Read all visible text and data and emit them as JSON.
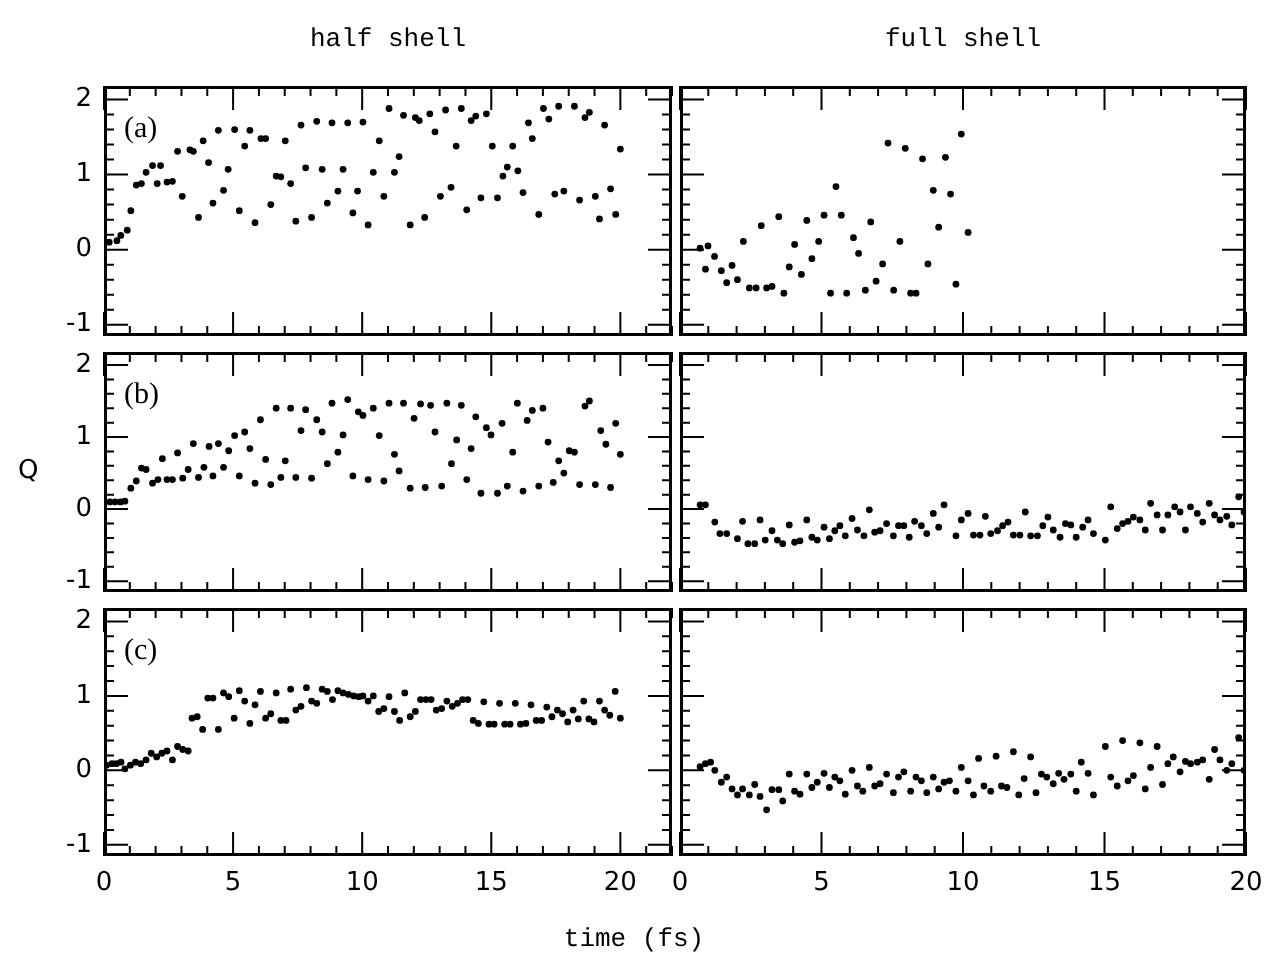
{
  "chart_data": [
    {
      "type": "scatter",
      "title": "half shell",
      "annotations": [
        "(a)"
      ],
      "marker": "circle",
      "color": "#000000",
      "tick_labels": "y",
      "xlim": [
        0,
        22
      ],
      "ylim": [
        -1.15,
        2.18
      ],
      "xticks": [
        0,
        {
          "value": 1,
          "label": null
        },
        {
          "value": 2,
          "label": null
        },
        {
          "value": 3,
          "label": null
        },
        {
          "value": 4,
          "label": null
        },
        5,
        {
          "value": 6,
          "label": null
        },
        {
          "value": 7,
          "label": null
        },
        {
          "value": 8,
          "label": null
        },
        {
          "value": 9,
          "label": null
        },
        10,
        {
          "value": 11,
          "label": null
        },
        {
          "value": 12,
          "label": null
        },
        {
          "value": 13,
          "label": null
        },
        {
          "value": 14,
          "label": null
        },
        15,
        {
          "value": 16,
          "label": null
        },
        {
          "value": 17,
          "label": null
        },
        {
          "value": 18,
          "label": null
        },
        {
          "value": 19,
          "label": null
        },
        20,
        {
          "value": 21,
          "label": null
        },
        {
          "value": 22,
          "label": null
        }
      ],
      "yticks": [
        -1,
        {
          "value": -0.8,
          "label": null
        },
        {
          "value": -0.6,
          "label": null
        },
        {
          "value": -0.4,
          "label": null
        },
        {
          "value": -0.2,
          "label": null
        },
        0,
        {
          "value": 0.2,
          "label": null
        },
        {
          "value": 0.4,
          "label": null
        },
        {
          "value": 0.6,
          "label": null
        },
        {
          "value": 0.8,
          "label": null
        },
        1,
        {
          "value": 1.2,
          "label": null
        },
        {
          "value": 1.4,
          "label": null
        },
        {
          "value": 1.6,
          "label": null
        },
        {
          "value": 1.8,
          "label": null
        },
        2
      ],
      "x": [
        0.2,
        0.5,
        0.65,
        0.9,
        1.04,
        1.25,
        1.45,
        1.63,
        1.88,
        2.19,
        2.06,
        2.44,
        2.65,
        2.85,
        3.03,
        3.33,
        3.46,
        3.66,
        3.84,
        4.05,
        4.22,
        4.43,
        4.63,
        4.81,
        5.06,
        5.24,
        5.45,
        5.65,
        5.85,
        6.08,
        6.26,
        6.46,
        6.67,
        6.85,
        7.02,
        7.23,
        7.43,
        7.63,
        7.81,
        8.04,
        8.24,
        8.45,
        8.65,
        8.83,
        9.06,
        9.26,
        9.44,
        9.64,
        9.82,
        10.03,
        10.23,
        10.43,
        10.66,
        10.84,
        11.04,
        11.25,
        11.43,
        11.6,
        11.86,
        12.06,
        12.21,
        12.42,
        12.62,
        12.82,
        13.03,
        13.23,
        13.44,
        13.64,
        13.84,
        14.05,
        14.22,
        14.4,
        14.6,
        14.81,
        15.04,
        15.24,
        15.45,
        15.62,
        15.83,
        16.03,
        16.23,
        16.44,
        16.59,
        16.84,
        17.02,
        17.23,
        17.46,
        17.61,
        17.81,
        18.22,
        18.42,
        18.63,
        18.8,
        19.03,
        19.19,
        19.39,
        19.62,
        19.82,
        20.0
      ],
      "values": [
        0.1,
        0.12,
        0.19,
        0.26,
        0.52,
        0.86,
        0.88,
        1.03,
        1.12,
        1.12,
        0.88,
        0.9,
        0.91,
        1.31,
        0.71,
        1.33,
        1.31,
        0.43,
        1.45,
        1.16,
        0.62,
        1.59,
        0.79,
        1.07,
        1.6,
        0.52,
        1.38,
        1.59,
        0.36,
        1.48,
        1.48,
        0.6,
        0.98,
        0.97,
        1.45,
        0.88,
        0.38,
        1.66,
        1.09,
        0.43,
        1.71,
        1.07,
        0.62,
        1.69,
        0.78,
        1.07,
        1.69,
        0.49,
        0.78,
        1.7,
        0.33,
        1.03,
        1.45,
        0.71,
        1.88,
        1.03,
        1.24,
        1.79,
        0.33,
        1.76,
        1.72,
        0.43,
        1.81,
        1.57,
        0.71,
        1.86,
        0.83,
        1.38,
        1.88,
        0.53,
        1.72,
        1.78,
        0.69,
        1.81,
        1.38,
        0.69,
        0.98,
        1.1,
        1.38,
        1.05,
        0.76,
        1.69,
        1.48,
        0.47,
        1.88,
        1.74,
        0.74,
        1.91,
        0.78,
        1.91,
        0.66,
        1.76,
        1.83,
        0.71,
        0.41,
        1.66,
        0.81,
        0.47,
        1.34
      ]
    },
    {
      "type": "scatter",
      "title": "full shell",
      "marker": "circle",
      "color": "#000000",
      "tick_labels": false,
      "xlim": [
        0,
        20
      ],
      "ylim": [
        -1.15,
        2.18
      ],
      "xticks": [
        0,
        {
          "value": 1,
          "label": null
        },
        {
          "value": 2,
          "label": null
        },
        {
          "value": 3,
          "label": null
        },
        {
          "value": 4,
          "label": null
        },
        5,
        {
          "value": 6,
          "label": null
        },
        {
          "value": 7,
          "label": null
        },
        {
          "value": 8,
          "label": null
        },
        {
          "value": 9,
          "label": null
        },
        10,
        {
          "value": 11,
          "label": null
        },
        {
          "value": 12,
          "label": null
        },
        {
          "value": 13,
          "label": null
        },
        {
          "value": 14,
          "label": null
        },
        15,
        {
          "value": 16,
          "label": null
        },
        {
          "value": 17,
          "label": null
        },
        {
          "value": 18,
          "label": null
        },
        {
          "value": 19,
          "label": null
        },
        20
      ],
      "yticks": [
        -1,
        {
          "value": -0.8,
          "label": null
        },
        {
          "value": -0.6,
          "label": null
        },
        {
          "value": -0.4,
          "label": null
        },
        {
          "value": -0.2,
          "label": null
        },
        0,
        {
          "value": 0.2,
          "label": null
        },
        {
          "value": 0.4,
          "label": null
        },
        {
          "value": 0.6,
          "label": null
        },
        {
          "value": 0.8,
          "label": null
        },
        1,
        {
          "value": 1.2,
          "label": null
        },
        {
          "value": 1.4,
          "label": null
        },
        {
          "value": 1.6,
          "label": null
        },
        {
          "value": 1.8,
          "label": null
        },
        2
      ],
      "x": [
        0.71,
        0.99,
        1.22,
        0.9,
        1.46,
        1.65,
        1.84,
        2.03,
        2.24,
        2.45,
        2.69,
        2.87,
        3.06,
        3.25,
        3.49,
        3.67,
        3.86,
        4.05,
        4.29,
        4.48,
        4.66,
        4.9,
        5.09,
        5.32,
        5.51,
        5.7,
        5.89,
        6.13,
        6.31,
        6.55,
        6.74,
        6.93,
        7.16,
        7.35,
        7.55,
        7.77,
        7.96,
        8.15,
        8.34,
        8.57,
        8.76,
        8.95,
        9.14,
        9.38,
        9.56,
        9.75,
        9.94,
        10.18
      ],
      "values": [
        0.02,
        0.05,
        -0.09,
        -0.26,
        -0.28,
        -0.44,
        -0.21,
        -0.4,
        0.11,
        -0.51,
        -0.51,
        0.32,
        -0.51,
        -0.49,
        0.44,
        -0.58,
        -0.23,
        0.07,
        -0.33,
        0.39,
        -0.12,
        0.11,
        0.46,
        -0.58,
        0.84,
        0.46,
        -0.58,
        0.16,
        -0.05,
        -0.54,
        0.37,
        -0.42,
        -0.19,
        1.42,
        -0.54,
        0.11,
        1.35,
        -0.58,
        -0.58,
        1.21,
        -0.19,
        0.79,
        0.3,
        1.23,
        0.74,
        -0.46,
        1.54,
        0.23
      ]
    },
    {
      "type": "scatter",
      "ylabel": "Q",
      "annotations": [
        "(b)"
      ],
      "marker": "circle",
      "color": "#000000",
      "tick_labels": "y",
      "xlim": [
        0,
        22
      ],
      "ylim": [
        -1.15,
        2.18
      ],
      "xticks": [
        0,
        {
          "value": 1,
          "label": null
        },
        {
          "value": 2,
          "label": null
        },
        {
          "value": 3,
          "label": null
        },
        {
          "value": 4,
          "label": null
        },
        5,
        {
          "value": 6,
          "label": null
        },
        {
          "value": 7,
          "label": null
        },
        {
          "value": 8,
          "label": null
        },
        {
          "value": 9,
          "label": null
        },
        10,
        {
          "value": 11,
          "label": null
        },
        {
          "value": 12,
          "label": null
        },
        {
          "value": 13,
          "label": null
        },
        {
          "value": 14,
          "label": null
        },
        15,
        {
          "value": 16,
          "label": null
        },
        {
          "value": 17,
          "label": null
        },
        {
          "value": 18,
          "label": null
        },
        {
          "value": 19,
          "label": null
        },
        20,
        {
          "value": 21,
          "label": null
        },
        {
          "value": 22,
          "label": null
        }
      ],
      "yticks": [
        -1,
        {
          "value": -0.8,
          "label": null
        },
        {
          "value": -0.6,
          "label": null
        },
        {
          "value": -0.4,
          "label": null
        },
        {
          "value": -0.2,
          "label": null
        },
        0,
        {
          "value": 0.2,
          "label": null
        },
        {
          "value": 0.4,
          "label": null
        },
        {
          "value": 0.6,
          "label": null
        },
        {
          "value": 0.8,
          "label": null
        },
        1,
        {
          "value": 1.2,
          "label": null
        },
        {
          "value": 1.4,
          "label": null
        },
        {
          "value": 1.6,
          "label": null
        },
        {
          "value": 1.8,
          "label": null
        },
        2
      ],
      "x": [
        0.23,
        0.43,
        0.64,
        0.81,
        1.04,
        1.25,
        1.45,
        1.63,
        1.88,
        2.09,
        2.26,
        2.44,
        2.65,
        2.85,
        3.05,
        3.26,
        3.46,
        3.66,
        3.87,
        4.07,
        4.22,
        4.43,
        4.63,
        4.83,
        5.06,
        5.24,
        5.45,
        5.65,
        5.85,
        6.06,
        6.26,
        6.46,
        6.67,
        6.85,
        7.02,
        7.23,
        7.43,
        7.63,
        7.81,
        8.04,
        8.24,
        8.45,
        8.65,
        8.83,
        9.06,
        9.26,
        9.44,
        9.64,
        9.85,
        10.03,
        10.23,
        10.43,
        10.66,
        10.84,
        11.04,
        11.25,
        11.43,
        11.6,
        11.86,
        12.01,
        12.26,
        12.44,
        12.65,
        12.82,
        13.08,
        13.28,
        13.46,
        13.66,
        13.84,
        14.05,
        14.22,
        14.4,
        14.6,
        14.81,
        14.99,
        15.24,
        15.42,
        15.62,
        15.83,
        16.01,
        16.23,
        16.39,
        16.59,
        16.84,
        17.0,
        17.2,
        17.4,
        17.61,
        17.81,
        18.02,
        18.22,
        18.42,
        18.63,
        18.8,
        19.03,
        19.24,
        19.44,
        19.62,
        19.82,
        20.0
      ],
      "values": [
        0.1,
        0.1,
        0.1,
        0.11,
        0.29,
        0.39,
        0.57,
        0.55,
        0.36,
        0.41,
        0.7,
        0.41,
        0.41,
        0.78,
        0.43,
        0.55,
        0.91,
        0.44,
        0.58,
        0.87,
        0.46,
        0.91,
        0.58,
        0.81,
        1.02,
        0.46,
        1.07,
        0.84,
        0.36,
        1.24,
        0.69,
        0.34,
        1.4,
        0.44,
        0.67,
        1.4,
        0.44,
        1.09,
        1.38,
        0.43,
        1.24,
        1.07,
        0.63,
        1.47,
        0.79,
        1.03,
        1.52,
        0.46,
        1.35,
        1.3,
        0.41,
        1.4,
        1.02,
        0.39,
        1.47,
        0.76,
        0.53,
        1.47,
        0.29,
        1.26,
        1.46,
        0.3,
        1.44,
        1.07,
        0.32,
        1.47,
        0.63,
        0.96,
        1.44,
        0.41,
        0.84,
        1.28,
        0.22,
        1.13,
        1.03,
        0.22,
        1.19,
        0.32,
        0.79,
        1.47,
        0.25,
        1.23,
        1.37,
        0.32,
        1.4,
        0.93,
        0.37,
        0.67,
        0.5,
        0.81,
        0.79,
        0.34,
        1.43,
        1.5,
        0.34,
        1.09,
        0.9,
        0.3,
        1.19,
        0.76
      ]
    },
    {
      "type": "scatter",
      "marker": "circle",
      "color": "#000000",
      "tick_labels": false,
      "xlim": [
        0,
        20
      ],
      "ylim": [
        -1.15,
        2.18
      ],
      "xticks": [
        0,
        {
          "value": 1,
          "label": null
        },
        {
          "value": 2,
          "label": null
        },
        {
          "value": 3,
          "label": null
        },
        {
          "value": 4,
          "label": null
        },
        5,
        {
          "value": 6,
          "label": null
        },
        {
          "value": 7,
          "label": null
        },
        {
          "value": 8,
          "label": null
        },
        {
          "value": 9,
          "label": null
        },
        10,
        {
          "value": 11,
          "label": null
        },
        {
          "value": 12,
          "label": null
        },
        {
          "value": 13,
          "label": null
        },
        {
          "value": 14,
          "label": null
        },
        15,
        {
          "value": 16,
          "label": null
        },
        {
          "value": 17,
          "label": null
        },
        {
          "value": 18,
          "label": null
        },
        {
          "value": 19,
          "label": null
        },
        20
      ],
      "yticks": [
        -1,
        {
          "value": -0.8,
          "label": null
        },
        {
          "value": -0.6,
          "label": null
        },
        {
          "value": -0.4,
          "label": null
        },
        {
          "value": -0.2,
          "label": null
        },
        0,
        {
          "value": 0.2,
          "label": null
        },
        {
          "value": 0.4,
          "label": null
        },
        {
          "value": 0.6,
          "label": null
        },
        {
          "value": 0.8,
          "label": null
        },
        1,
        {
          "value": 1.2,
          "label": null
        },
        {
          "value": 1.4,
          "label": null
        },
        {
          "value": 1.6,
          "label": null
        },
        {
          "value": 1.8,
          "label": null
        },
        2
      ],
      "x": [
        0.71,
        0.9,
        1.23,
        1.41,
        1.65,
        2.03,
        2.21,
        2.4,
        2.64,
        2.83,
        3.01,
        3.25,
        3.44,
        3.63,
        3.86,
        4.05,
        4.24,
        4.48,
        4.66,
        4.85,
        5.09,
        5.28,
        5.47,
        5.65,
        5.84,
        6.08,
        6.27,
        6.5,
        6.69,
        6.88,
        7.07,
        7.3,
        7.54,
        7.72,
        7.91,
        8.1,
        8.29,
        8.53,
        8.72,
        8.95,
        9.14,
        9.33,
        9.75,
        9.94,
        10.18,
        10.37,
        10.6,
        10.79,
        10.98,
        11.22,
        11.4,
        11.59,
        11.78,
        12.01,
        12.2,
        12.39,
        12.63,
        12.82,
        13.0,
        13.19,
        13.43,
        13.62,
        13.81,
        14.0,
        14.23,
        14.42,
        14.61,
        15.03,
        15.22,
        15.45,
        15.64,
        15.83,
        16.02,
        16.25,
        16.44,
        16.63,
        16.86,
        17.05,
        17.24,
        17.48,
        17.67,
        17.86,
        18.04,
        18.28,
        18.47,
        18.7,
        18.89,
        19.08,
        19.32,
        19.5,
        19.74,
        19.93
      ],
      "values": [
        0.06,
        0.06,
        -0.18,
        -0.34,
        -0.34,
        -0.41,
        -0.17,
        -0.48,
        -0.48,
        -0.15,
        -0.43,
        -0.3,
        -0.43,
        -0.48,
        -0.22,
        -0.46,
        -0.44,
        -0.15,
        -0.39,
        -0.43,
        -0.25,
        -0.41,
        -0.3,
        -0.23,
        -0.37,
        -0.13,
        -0.29,
        -0.37,
        -0.01,
        -0.32,
        -0.3,
        -0.2,
        -0.37,
        -0.23,
        -0.23,
        -0.39,
        -0.17,
        -0.23,
        -0.34,
        -0.06,
        -0.25,
        0.06,
        -0.37,
        -0.15,
        -0.06,
        -0.36,
        -0.36,
        -0.1,
        -0.34,
        -0.3,
        -0.23,
        -0.18,
        -0.36,
        -0.36,
        -0.04,
        -0.37,
        -0.37,
        -0.23,
        -0.11,
        -0.29,
        -0.39,
        -0.2,
        -0.22,
        -0.39,
        -0.25,
        -0.15,
        -0.34,
        -0.43,
        0.03,
        -0.27,
        -0.2,
        -0.17,
        -0.11,
        -0.15,
        -0.29,
        0.08,
        -0.08,
        -0.29,
        -0.08,
        0.03,
        -0.04,
        -0.29,
        0.03,
        -0.06,
        -0.18,
        0.08,
        -0.08,
        -0.15,
        -0.1,
        -0.22,
        0.17,
        -0.04
      ]
    },
    {
      "type": "scatter",
      "xlabel": "time (fs)",
      "annotations": [
        "(c)"
      ],
      "marker": "circle",
      "color": "#000000",
      "xlim": [
        0,
        22
      ],
      "ylim": [
        -1.15,
        2.18
      ],
      "xticks": [
        0,
        {
          "value": 1,
          "label": null
        },
        {
          "value": 2,
          "label": null
        },
        {
          "value": 3,
          "label": null
        },
        {
          "value": 4,
          "label": null
        },
        5,
        {
          "value": 6,
          "label": null
        },
        {
          "value": 7,
          "label": null
        },
        {
          "value": 8,
          "label": null
        },
        {
          "value": 9,
          "label": null
        },
        10,
        {
          "value": 11,
          "label": null
        },
        {
          "value": 12,
          "label": null
        },
        {
          "value": 13,
          "label": null
        },
        {
          "value": 14,
          "label": null
        },
        15,
        {
          "value": 16,
          "label": null
        },
        {
          "value": 17,
          "label": null
        },
        {
          "value": 18,
          "label": null
        },
        {
          "value": 19,
          "label": null
        },
        20,
        {
          "value": 21,
          "label": null
        },
        {
          "value": 22,
          "label": null
        }
      ],
      "yticks": [
        -1,
        {
          "value": -0.8,
          "label": null
        },
        {
          "value": -0.6,
          "label": null
        },
        {
          "value": -0.4,
          "label": null
        },
        {
          "value": -0.2,
          "label": null
        },
        0,
        {
          "value": 0.2,
          "label": null
        },
        {
          "value": 0.4,
          "label": null
        },
        {
          "value": 0.6,
          "label": null
        },
        {
          "value": 0.8,
          "label": null
        },
        1,
        {
          "value": 1.2,
          "label": null
        },
        {
          "value": 1.4,
          "label": null
        },
        {
          "value": 1.6,
          "label": null
        },
        {
          "value": 1.8,
          "label": null
        },
        2
      ],
      "x": [
        0.1,
        0.31,
        0.48,
        0.66,
        0.81,
        1.02,
        1.22,
        1.42,
        1.63,
        1.83,
        2.04,
        2.24,
        2.44,
        2.65,
        2.85,
        3.05,
        3.26,
        3.41,
        3.61,
        3.82,
        4.02,
        4.22,
        4.43,
        4.63,
        4.83,
        5.04,
        5.24,
        5.45,
        5.65,
        5.85,
        6.06,
        6.26,
        6.46,
        6.67,
        6.85,
        7.05,
        7.23,
        7.43,
        7.63,
        7.84,
        8.04,
        8.24,
        8.45,
        8.65,
        8.85,
        9.06,
        9.26,
        9.47,
        9.67,
        9.87,
        10.03,
        10.23,
        10.43,
        10.64,
        10.84,
        11.04,
        11.25,
        11.45,
        11.65,
        11.86,
        12.06,
        12.26,
        12.47,
        12.67,
        12.87,
        13.08,
        13.28,
        13.49,
        13.69,
        13.89,
        14.09,
        14.3,
        14.5,
        14.71,
        14.91,
        15.11,
        15.32,
        15.52,
        15.73,
        15.93,
        16.13,
        16.34,
        16.54,
        16.74,
        16.95,
        17.15,
        17.35,
        17.56,
        17.76,
        17.96,
        18.17,
        18.37,
        18.58,
        18.78,
        18.98,
        19.19,
        19.39,
        19.59,
        19.8,
        20.0
      ],
      "values": [
        0.07,
        0.09,
        0.09,
        0.11,
        0.02,
        0.07,
        0.11,
        0.09,
        0.14,
        0.23,
        0.18,
        0.23,
        0.26,
        0.14,
        0.32,
        0.28,
        0.26,
        0.7,
        0.72,
        0.55,
        0.97,
        0.97,
        0.55,
        1.04,
        0.99,
        0.7,
        1.07,
        0.93,
        0.63,
        0.88,
        1.06,
        0.7,
        0.76,
        1.04,
        0.67,
        0.67,
        1.09,
        0.81,
        0.86,
        1.11,
        0.93,
        0.9,
        1.09,
        1.06,
        0.95,
        1.07,
        1.04,
        1.02,
        1.0,
        0.99,
        1.0,
        0.93,
        1.0,
        0.79,
        0.83,
        0.99,
        0.79,
        0.67,
        1.04,
        0.72,
        0.79,
        0.95,
        0.95,
        0.95,
        0.81,
        0.83,
        0.93,
        0.86,
        0.9,
        0.95,
        0.95,
        0.67,
        0.63,
        0.92,
        0.62,
        0.62,
        0.9,
        0.62,
        0.62,
        0.9,
        0.62,
        0.63,
        0.88,
        0.67,
        0.67,
        0.85,
        0.72,
        0.81,
        0.76,
        0.65,
        0.81,
        0.69,
        0.93,
        0.69,
        0.65,
        0.93,
        0.81,
        0.74,
        1.06,
        0.7
      ]
    },
    {
      "type": "scatter",
      "marker": "circle",
      "color": "#000000",
      "tick_labels": "x",
      "xlim": [
        0,
        20
      ],
      "ylim": [
        -1.15,
        2.18
      ],
      "xticks": [
        0,
        {
          "value": 1,
          "label": null
        },
        {
          "value": 2,
          "label": null
        },
        {
          "value": 3,
          "label": null
        },
        {
          "value": 4,
          "label": null
        },
        5,
        {
          "value": 6,
          "label": null
        },
        {
          "value": 7,
          "label": null
        },
        {
          "value": 8,
          "label": null
        },
        {
          "value": 9,
          "label": null
        },
        10,
        {
          "value": 11,
          "label": null
        },
        {
          "value": 12,
          "label": null
        },
        {
          "value": 13,
          "label": null
        },
        {
          "value": 14,
          "label": null
        },
        15,
        {
          "value": 16,
          "label": null
        },
        {
          "value": 17,
          "label": null
        },
        {
          "value": 18,
          "label": null
        },
        {
          "value": 19,
          "label": null
        },
        20
      ],
      "yticks": [
        -1,
        {
          "value": -0.8,
          "label": null
        },
        {
          "value": -0.6,
          "label": null
        },
        {
          "value": -0.4,
          "label": null
        },
        {
          "value": -0.2,
          "label": null
        },
        0,
        {
          "value": 0.2,
          "label": null
        },
        {
          "value": 0.4,
          "label": null
        },
        {
          "value": 0.6,
          "label": null
        },
        {
          "value": 0.8,
          "label": null
        },
        1,
        {
          "value": 1.2,
          "label": null
        },
        {
          "value": 1.4,
          "label": null
        },
        {
          "value": 1.6,
          "label": null
        },
        {
          "value": 1.8,
          "label": null
        },
        2
      ],
      "x": [
        0.71,
        0.9,
        1.08,
        1.23,
        1.46,
        1.65,
        1.84,
        2.03,
        2.21,
        2.45,
        2.64,
        2.83,
        3.06,
        3.25,
        3.49,
        3.63,
        3.86,
        4.05,
        4.24,
        4.48,
        4.66,
        4.85,
        5.09,
        5.28,
        5.47,
        5.65,
        5.84,
        6.08,
        6.27,
        6.46,
        6.69,
        6.88,
        7.07,
        7.3,
        7.54,
        7.72,
        7.91,
        8.15,
        8.34,
        8.53,
        8.72,
        8.95,
        9.14,
        9.33,
        9.52,
        9.75,
        9.94,
        10.18,
        10.37,
        10.55,
        10.74,
        10.98,
        11.17,
        11.36,
        11.55,
        11.78,
        11.97,
        12.16,
        12.39,
        12.58,
        12.77,
        12.96,
        13.19,
        13.38,
        13.57,
        13.81,
        14.0,
        14.18,
        14.42,
        14.61,
        15.03,
        15.22,
        15.45,
        15.64,
        15.83,
        16.02,
        16.25,
        16.44,
        16.63,
        16.86,
        17.05,
        17.24,
        17.43,
        17.67,
        17.86,
        18.04,
        18.28,
        18.47,
        18.7,
        18.89,
        19.08,
        19.32,
        19.5,
        19.74,
        19.93
      ],
      "values": [
        0.05,
        0.09,
        0.11,
        0,
        -0.16,
        -0.09,
        -0.25,
        -0.33,
        -0.25,
        -0.33,
        -0.19,
        -0.35,
        -0.53,
        -0.26,
        -0.26,
        -0.41,
        -0.05,
        -0.28,
        -0.32,
        -0.05,
        -0.23,
        -0.16,
        -0.04,
        -0.23,
        -0.09,
        -0.14,
        -0.32,
        0,
        -0.21,
        -0.28,
        0.04,
        -0.21,
        -0.18,
        -0.05,
        -0.3,
        -0.09,
        -0.02,
        -0.28,
        -0.09,
        -0.14,
        -0.3,
        -0.09,
        -0.25,
        -0.16,
        -0.14,
        -0.28,
        0.04,
        -0.14,
        -0.33,
        0.16,
        -0.21,
        -0.28,
        0.19,
        -0.21,
        -0.23,
        0.25,
        -0.33,
        -0.11,
        0.18,
        -0.3,
        -0.05,
        -0.09,
        -0.18,
        -0.04,
        -0.12,
        -0.05,
        -0.28,
        0.11,
        -0.04,
        -0.33,
        0.32,
        -0.09,
        -0.21,
        0.4,
        -0.14,
        -0.07,
        0.37,
        -0.25,
        0.04,
        0.32,
        -0.19,
        0.09,
        0.18,
        -0.02,
        0.12,
        0.09,
        0.11,
        0.14,
        -0.12,
        0.28,
        0.14,
        0,
        0.09,
        0.44,
        0
      ]
    }
  ]
}
